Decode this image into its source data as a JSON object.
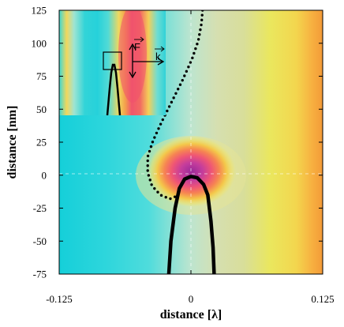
{
  "chart_data": {
    "type": "heatmap",
    "title": "",
    "xlabel": "distance [λ]",
    "ylabel": "distance [nm]",
    "xlim": [
      -0.125,
      0.125
    ],
    "ylim": [
      -75,
      125
    ],
    "x_ticks": [
      -0.125,
      0,
      0.125
    ],
    "x_tick_labels": [
      "-0.125",
      "0",
      "0.125"
    ],
    "y_ticks": [
      -75,
      -50,
      -25,
      0,
      25,
      50,
      75,
      100,
      125
    ],
    "y_tick_labels": [
      "-75",
      "-50",
      "-25",
      "0",
      "25",
      "50",
      "75",
      "100",
      "125"
    ],
    "grid": false,
    "colorscale": [
      "#1ad4de",
      "#9ee6e0",
      "#d8dfb0",
      "#f0ea60",
      "#f6b640",
      "#f05a70",
      "#b83aa0"
    ],
    "dotted_trajectory": [
      [
        0.011,
        125
      ],
      [
        0.01,
        115
      ],
      [
        0.007,
        102
      ],
      [
        0.001,
        88
      ],
      [
        -0.008,
        72
      ],
      [
        -0.018,
        56
      ],
      [
        -0.028,
        40
      ],
      [
        -0.036,
        26
      ],
      [
        -0.041,
        14
      ],
      [
        -0.041,
        2
      ],
      [
        -0.037,
        -8
      ],
      [
        -0.029,
        -15
      ],
      [
        -0.02,
        -18
      ],
      [
        -0.014,
        -16
      ]
    ],
    "tip_outline": [
      [
        -0.021,
        -75
      ],
      [
        -0.019,
        -50
      ],
      [
        -0.015,
        -25
      ],
      [
        -0.011,
        -10
      ],
      [
        -0.006,
        -3
      ],
      [
        0.0,
        -1
      ],
      [
        0.006,
        -2
      ],
      [
        0.012,
        -7
      ],
      [
        0.016,
        -15
      ],
      [
        0.019,
        -35
      ],
      [
        0.021,
        -55
      ],
      [
        0.022,
        -75
      ]
    ],
    "inset": {
      "vector_labels": [
        "F",
        "k"
      ],
      "marks": [
        "force-arrow-vertical",
        "wavevector-arrow-horizontal",
        "zoom-box"
      ]
    }
  }
}
